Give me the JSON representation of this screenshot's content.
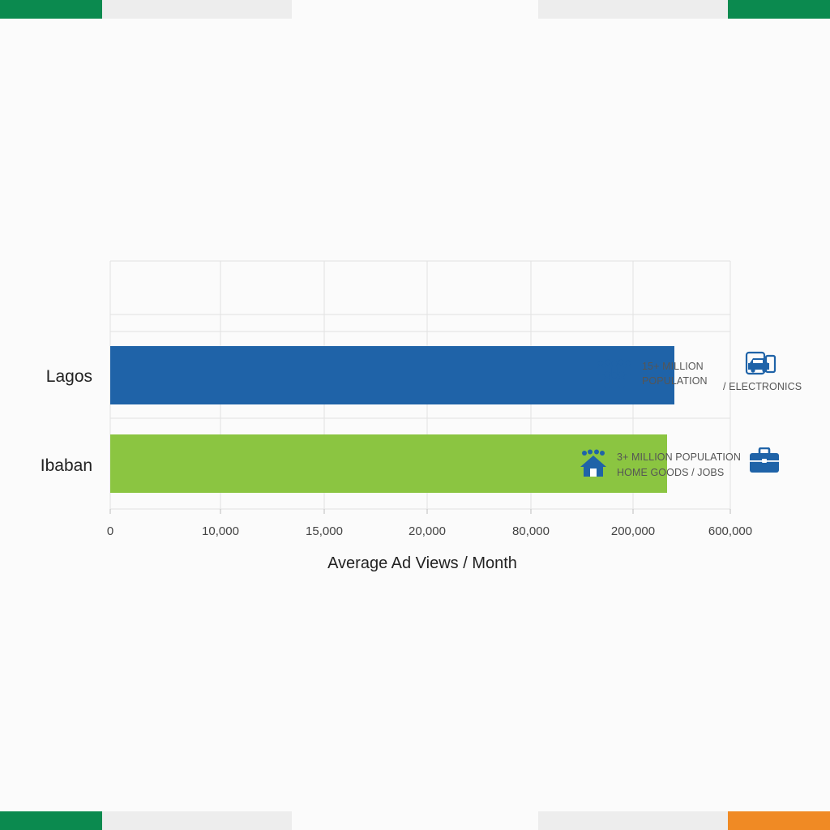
{
  "colors": {
    "primary_blue": "#1f63a8",
    "accent_green": "#8bc541",
    "brand_green": "#0b8a4f",
    "brand_orange": "#f08a24",
    "strip_gray": "#ededed",
    "grid": "#e2e2e2"
  },
  "decor_strips": {
    "top": [
      "brand_green",
      "strip_gray",
      "strip_gray",
      "brand_green"
    ],
    "bottom": [
      "brand_green",
      "strip_gray",
      "strip_gray",
      "brand_orange"
    ]
  },
  "chart_data": {
    "type": "bar",
    "orientation": "horizontal",
    "title": "",
    "xlabel": "Average Ad Views / Month",
    "ylabel": "",
    "x_tick_labels": [
      "0",
      "10,000",
      "15,000",
      "20,000",
      "80,000",
      "200,000",
      "600,000"
    ],
    "categories": [
      "Lagos",
      "Ibaban"
    ],
    "values": [
      370000,
      340000
    ],
    "bar_colors": [
      "#1f63a8",
      "#8bc541"
    ],
    "grid": true,
    "annotations": [
      {
        "category": "Lagos",
        "icons": [
          "people-group-icon",
          "car-device-icon"
        ],
        "line1": "15+ MILLION",
        "line2": "POPULATION",
        "line3": "/ ELECTRONICS"
      },
      {
        "category": "Ibaban",
        "icons": [
          "house-people-icon",
          "briefcase-icon"
        ],
        "line1": "3+ MILLION POPULATION",
        "line2": "HOME GOODS / JOBS"
      }
    ]
  }
}
